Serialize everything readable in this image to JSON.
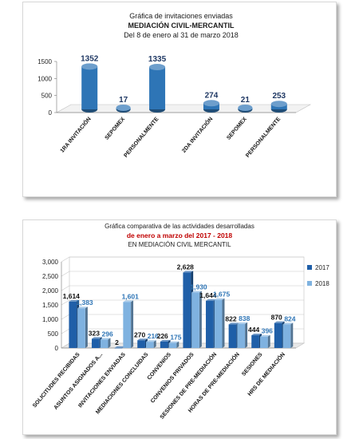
{
  "chart_data": [
    {
      "type": "bar",
      "title": "Gráfica de invitaciones enviadas",
      "subtitle": "MEDIACIÓN CIVIL-MERCANTIL",
      "period": "Del  8 de enero  al 31 de marzo  2018",
      "categories": [
        "1RA INVITACIÓN",
        "SEPOMEX",
        "PERSONALMENTE",
        "2DA INVITACIÓN",
        "SEPOMEX",
        "PERSONALMENTE"
      ],
      "values": [
        1352,
        17,
        1335,
        274,
        21,
        253
      ],
      "data_labels": [
        "1352",
        "17",
        "1335",
        "274",
        "21",
        "253"
      ],
      "yticks": [
        "0",
        "500",
        "1000",
        "1500"
      ],
      "ylim": [
        0,
        1500
      ],
      "grid": false,
      "color": "#2e75b6"
    },
    {
      "type": "bar",
      "title": "Gráfica comparativa de las actividades desarrolladas",
      "subtitle": "de  enero a  marzo  del  2017 - 2018",
      "subtitle2": "EN MEDIACIÓN CIVIL MERCANTIL",
      "categories": [
        "SOLICITUDES RECIBIDAS",
        "ASUNTOS ASIGNADOS A...",
        "INVITACIONES ENVIADAS",
        "MEDIACIONES CONCLUIDAS",
        "CONVENIOS",
        "CONVENIOS PRIVADOS",
        "SESIONES DE PRE-MEDIACIÓN",
        "HORAS DE PRE-MEDIACIÓN",
        "SESIONES",
        "HRS DE MEDIACIÓN"
      ],
      "series": [
        {
          "name": "2017",
          "values": [
            1614,
            323,
            2,
            270,
            226,
            2628,
            1644,
            822,
            444,
            870
          ],
          "labels": [
            "1,614",
            "323",
            "2",
            "270",
            "226",
            "2,628",
            "1,644",
            "822",
            "444",
            "870"
          ],
          "color": "#1f5fa8"
        },
        {
          "name": "2018",
          "values": [
            1383,
            296,
            1601,
            216,
            175,
            1930,
            1675,
            838,
            396,
            824
          ],
          "labels": [
            "1,383",
            "296",
            "1,601",
            "216",
            "175",
            "1,930",
            "1,675",
            "838",
            "396",
            "824"
          ],
          "color": "#7fb2e0"
        }
      ],
      "yticks": [
        "0",
        "500",
        "1,000",
        "1,500",
        "2,000",
        "2,500",
        "3,000"
      ],
      "ylim": [
        0,
        3000
      ],
      "grid": true,
      "legend": "right"
    }
  ]
}
